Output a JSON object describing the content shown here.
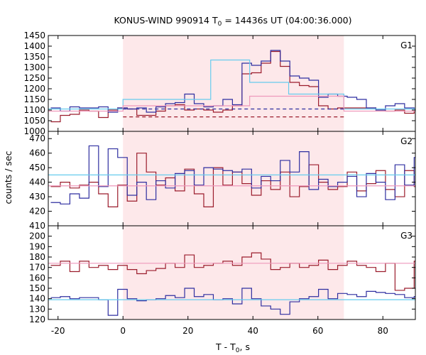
{
  "chart_data": {
    "type": "line",
    "title_main": "KONUS-WIND 990914 T",
    "title_sub": "0",
    "title_rest": " = 14436s UT (04:00:36.000)",
    "xlabel_main": "T - T",
    "xlabel_sub": "0",
    "xlabel_rest": ", s",
    "ylabel": "counts / sec",
    "xlim": [
      -23,
      90
    ],
    "x_ticks": [
      "-20",
      "0",
      "20",
      "40",
      "60",
      "80"
    ],
    "shaded_interval": [
      0,
      68
    ],
    "colors": {
      "shade": "#fde8ea",
      "red": "#9b1c2c",
      "blue": "#2e2ea0",
      "cyan": "#66ccee",
      "pink": "#ee99bb"
    },
    "panels": [
      {
        "label": "G1",
        "ylim": [
          1000,
          1450
        ],
        "y_ticks": [
          "1000",
          "1050",
          "1100",
          "1150",
          "1200",
          "1250",
          "1300",
          "1350",
          "1400",
          "1450"
        ],
        "series": [
          {
            "role": "red-data",
            "step": 2.944,
            "x0": -22.24,
            "values": [
              1045,
              1075,
              1080,
              1100,
              1095,
              1065,
              1100,
              1110,
              1105,
              1075,
              1075,
              1095,
              1120,
              1125,
              1100,
              1105,
              1100,
              1090,
              1100,
              1120,
              1270,
              1275,
              1320,
              1375,
              1305,
              1230,
              1215,
              1210,
              1120,
              1105,
              1110,
              1110,
              1110,
              1110,
              1100,
              1095,
              1100,
              1085,
              1095,
              1090
            ]
          },
          {
            "role": "blue-data",
            "step": 2.944,
            "x0": -22.24,
            "values": [
              1110,
              1095,
              1115,
              1110,
              1110,
              1115,
              1090,
              1110,
              1105,
              1110,
              1090,
              1115,
              1130,
              1135,
              1175,
              1130,
              1115,
              1120,
              1150,
              1125,
              1320,
              1310,
              1330,
              1380,
              1330,
              1260,
              1250,
              1240,
              1160,
              1175,
              1165,
              1160,
              1150,
              1110,
              1100,
              1120,
              1130,
              1110,
              1105,
              1100
            ]
          },
          {
            "role": "blue-fit",
            "points": [
              [
                -23,
                1105
              ],
              [
                0,
                1105
              ],
              [
                0,
                1150
              ],
              [
                27,
                1150
              ],
              [
                27,
                1335
              ],
              [
                39,
                1335
              ],
              [
                39,
                1230
              ],
              [
                51,
                1230
              ],
              [
                51,
                1175
              ],
              [
                68,
                1175
              ],
              [
                68,
                1105
              ],
              [
                90,
                1105
              ]
            ]
          },
          {
            "role": "pink-fit",
            "points": [
              [
                -23,
                1095
              ],
              [
                0,
                1095
              ],
              [
                0,
                1120
              ],
              [
                39,
                1120
              ],
              [
                39,
                1165
              ],
              [
                68,
                1165
              ],
              [
                68,
                1095
              ],
              [
                90,
                1095
              ]
            ]
          },
          {
            "role": "blue-bkg",
            "dashed": true,
            "points": [
              [
                0,
                1105
              ],
              [
                68,
                1105
              ]
            ]
          },
          {
            "role": "red-bkg",
            "dashed": true,
            "points": [
              [
                0,
                1068
              ],
              [
                68,
                1068
              ]
            ]
          }
        ]
      },
      {
        "label": "G2",
        "ylim": [
          410,
          475
        ],
        "y_ticks": [
          "410",
          "420",
          "430",
          "440",
          "450",
          "460",
          "470"
        ],
        "series": [
          {
            "role": "red-data",
            "step": 2.944,
            "x0": -22.24,
            "values": [
              437,
              440,
              436,
              438,
              440,
              432,
              423,
              438,
              427,
              460,
              447,
              438,
              443,
              434,
              449,
              432,
              423,
              450,
              438,
              447,
              439,
              431,
              441,
              435,
              447,
              430,
              437,
              452,
              440,
              435,
              437,
              447,
              434,
              439,
              448,
              435,
              430,
              448,
              437,
              466,
              455,
              469
            ]
          },
          {
            "role": "blue-data",
            "step": 2.944,
            "x0": -22.24,
            "values": [
              426,
              425,
              432,
              429,
              465,
              437,
              463,
              457,
              431,
              440,
              428,
              441,
              436,
              446,
              448,
              438,
              450,
              449,
              448,
              447,
              449,
              436,
              444,
              441,
              455,
              447,
              461,
              435,
              442,
              437,
              440,
              444,
              430,
              446,
              440,
              428,
              452,
              438,
              457,
              446,
              441,
              446,
              448,
              442
            ]
          },
          {
            "role": "cyan-fit",
            "points": [
              [
                -23,
                445
              ],
              [
                90,
                445
              ]
            ]
          },
          {
            "role": "pink-fit",
            "points": [
              [
                -23,
                437.5
              ],
              [
                90,
                437.5
              ]
            ]
          }
        ]
      },
      {
        "label": "G3",
        "ylim": [
          120,
          210
        ],
        "y_ticks": [
          "120",
          "130",
          "140",
          "150",
          "160",
          "170",
          "180",
          "190",
          "200"
        ],
        "series": [
          {
            "role": "red-data",
            "step": 2.944,
            "x0": -22.24,
            "values": [
              172,
              176,
              166,
              176,
              170,
              172,
              168,
              172,
              168,
              164,
              167,
              169,
              174,
              170,
              182,
              170,
              172,
              174,
              176,
              172,
              180,
              184,
              178,
              168,
              170,
              174,
              170,
              172,
              177,
              168,
              172,
              176,
              172,
              170,
              166,
              174,
              148,
              150,
              176,
              196,
              178,
              175
            ]
          },
          {
            "role": "blue-data",
            "step": 2.944,
            "x0": -22.24,
            "values": [
              141,
              142,
              140,
              141,
              141,
              139,
              124,
              149,
              140,
              138,
              139,
              140,
              143,
              141,
              150,
              142,
              144,
              139,
              140,
              135,
              150,
              140,
              133,
              130,
              125,
              137,
              140,
              142,
              149,
              140,
              145,
              144,
              142,
              147,
              146,
              145,
              144,
              141,
              142,
              145,
              143,
              140
            ]
          },
          {
            "role": "cyan-fit",
            "points": [
              [
                -23,
                139
              ],
              [
                90,
                139
              ]
            ]
          },
          {
            "role": "pink-fit",
            "points": [
              [
                -23,
                174
              ],
              [
                90,
                174
              ]
            ]
          }
        ]
      }
    ]
  }
}
